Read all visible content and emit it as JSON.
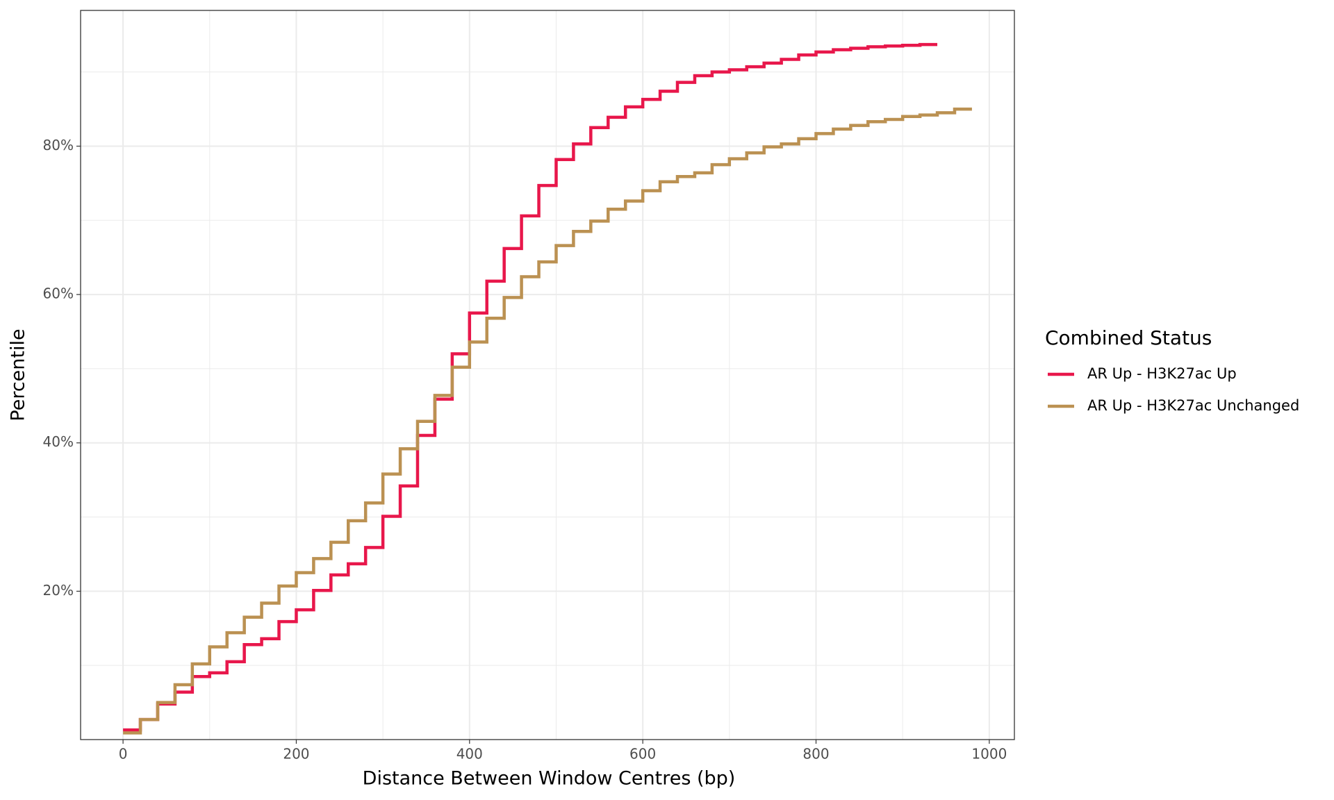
{
  "chart_data": {
    "type": "step",
    "x_label": "Distance Between Window Centres (bp)",
    "y_label": "Percentile",
    "legend_title": "Combined Status",
    "legend_position": "right",
    "grid": true,
    "xlim": [
      -49,
      1029
    ],
    "ylim": [
      0,
      98.3
    ],
    "xticks": [
      0,
      200,
      400,
      600,
      800,
      1000
    ],
    "yticks": [
      {
        "value": 20,
        "label": "20%"
      },
      {
        "value": 40,
        "label": "40%"
      },
      {
        "value": 60,
        "label": "60%"
      },
      {
        "value": 80,
        "label": "80%"
      }
    ],
    "x_minor_grid": [
      100,
      300,
      500,
      700,
      900
    ],
    "y_minor_grid": [
      10,
      30,
      50,
      70,
      90
    ],
    "series": [
      {
        "name": "AR Up - H3K27ac Up",
        "color": "#e8174b",
        "x": [
          0,
          20,
          40,
          60,
          80,
          100,
          120,
          140,
          160,
          180,
          200,
          220,
          240,
          260,
          280,
          300,
          320,
          340,
          360,
          380,
          400,
          420,
          440,
          460,
          480,
          500,
          520,
          540,
          560,
          580,
          600,
          620,
          640,
          660,
          680,
          700,
          720,
          740,
          760,
          780,
          800,
          820,
          840,
          860,
          880,
          900,
          920,
          940
        ],
        "values": [
          1.3,
          2.7,
          4.8,
          6.4,
          8.5,
          9.0,
          10.5,
          12.8,
          13.6,
          15.9,
          17.5,
          20.1,
          22.2,
          23.7,
          25.9,
          30.1,
          34.2,
          41.0,
          45.9,
          52.0,
          57.5,
          61.8,
          66.2,
          70.6,
          74.7,
          78.2,
          80.3,
          82.5,
          83.9,
          85.3,
          86.3,
          87.4,
          88.6,
          89.5,
          90.0,
          90.3,
          90.7,
          91.2,
          91.7,
          92.3,
          92.7,
          93.0,
          93.2,
          93.4,
          93.5,
          93.6,
          93.7,
          93.7
        ]
      },
      {
        "name": "AR Up - H3K27ac Unchanged",
        "color": "#bb9152",
        "x": [
          0,
          20,
          40,
          60,
          80,
          100,
          120,
          140,
          160,
          180,
          200,
          220,
          240,
          260,
          280,
          300,
          320,
          340,
          360,
          380,
          400,
          420,
          440,
          460,
          480,
          500,
          520,
          540,
          560,
          580,
          600,
          620,
          640,
          660,
          680,
          700,
          720,
          740,
          760,
          780,
          800,
          820,
          840,
          860,
          880,
          900,
          920,
          940,
          960,
          980
        ],
        "values": [
          0.9,
          2.7,
          5.0,
          7.4,
          10.2,
          12.5,
          14.4,
          16.5,
          18.4,
          20.7,
          22.5,
          24.4,
          26.6,
          29.5,
          31.9,
          35.8,
          39.2,
          42.9,
          46.4,
          50.2,
          53.6,
          56.8,
          59.6,
          62.4,
          64.4,
          66.6,
          68.5,
          69.9,
          71.5,
          72.6,
          74.0,
          75.2,
          75.9,
          76.4,
          77.5,
          78.3,
          79.1,
          79.9,
          80.3,
          81.0,
          81.7,
          82.3,
          82.8,
          83.3,
          83.6,
          84.0,
          84.2,
          84.5,
          85.0,
          85.0
        ]
      }
    ]
  }
}
